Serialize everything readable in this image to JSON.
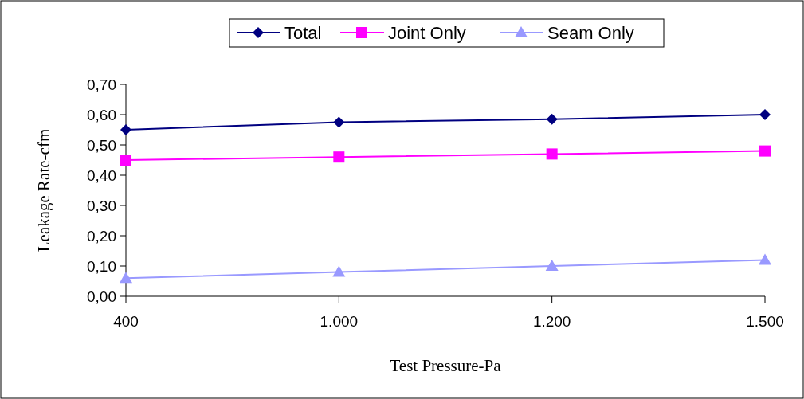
{
  "chart_data": {
    "type": "line",
    "xlabel": "Test Pressure-Pa",
    "ylabel": "Leakage Rate-cfm",
    "categories": [
      "400",
      "1.000",
      "1.200",
      "1.500"
    ],
    "series": [
      {
        "name": "Total",
        "color": "#000080",
        "marker": "diamond",
        "values": [
          0.55,
          0.575,
          0.585,
          0.6
        ]
      },
      {
        "name": "Joint Only",
        "color": "#ff00ff",
        "marker": "square",
        "values": [
          0.45,
          0.46,
          0.47,
          0.48
        ]
      },
      {
        "name": "Seam Only",
        "color": "#9999ff",
        "marker": "triangle",
        "values": [
          0.06,
          0.08,
          0.1,
          0.12
        ]
      }
    ],
    "ylim": [
      0,
      0.7
    ],
    "yticks": [
      {
        "value": 0,
        "label": "0,00"
      },
      {
        "value": 0.1,
        "label": "0,10"
      },
      {
        "value": 0.2,
        "label": "0,20"
      },
      {
        "value": 0.3,
        "label": "0,30"
      },
      {
        "value": 0.4,
        "label": "0,40"
      },
      {
        "value": 0.5,
        "label": "0,50"
      },
      {
        "value": 0.6,
        "label": "0,60"
      },
      {
        "value": 0.7,
        "label": "0,70"
      }
    ],
    "legend": "top",
    "grid": false,
    "line_style": "solid"
  }
}
